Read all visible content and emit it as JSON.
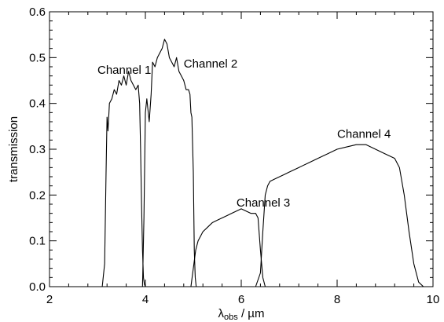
{
  "chart_data": {
    "type": "line",
    "xlabel_main": "λ",
    "xlabel_sub": "obs",
    "xlabel_unit": " / µm",
    "ylabel": "transmission",
    "xlim": [
      2,
      10
    ],
    "ylim": [
      0,
      0.6
    ],
    "x_major_ticks": [
      2,
      4,
      6,
      8,
      10
    ],
    "y_major_ticks": [
      0.0,
      0.1,
      0.2,
      0.3,
      0.4,
      0.5,
      0.6
    ],
    "x_tick_labels": [
      "2",
      "4",
      "6",
      "8",
      "10"
    ],
    "y_tick_labels": [
      "0.0",
      "0.1",
      "0.2",
      "0.3",
      "0.4",
      "0.5",
      "0.6"
    ],
    "grid": false,
    "line_color": "#000000",
    "series": [
      {
        "name": "Channel 1",
        "x": [
          3.1,
          3.15,
          3.18,
          3.2,
          3.22,
          3.25,
          3.3,
          3.35,
          3.4,
          3.45,
          3.5,
          3.55,
          3.6,
          3.65,
          3.7,
          3.75,
          3.8,
          3.85,
          3.88,
          3.9,
          3.92,
          3.94,
          3.96,
          3.98,
          4.0
        ],
        "y": [
          0.0,
          0.05,
          0.25,
          0.37,
          0.34,
          0.4,
          0.41,
          0.43,
          0.42,
          0.45,
          0.44,
          0.46,
          0.44,
          0.47,
          0.45,
          0.44,
          0.43,
          0.44,
          0.4,
          0.3,
          0.18,
          0.08,
          0.02,
          0.005,
          0.0
        ]
      },
      {
        "name": "Channel 2",
        "x": [
          3.94,
          3.97,
          4.0,
          4.03,
          4.05,
          4.08,
          4.12,
          4.15,
          4.2,
          4.25,
          4.3,
          4.35,
          4.4,
          4.45,
          4.5,
          4.55,
          4.6,
          4.65,
          4.7,
          4.75,
          4.8,
          4.85,
          4.9,
          4.93,
          4.95,
          4.97,
          5.0,
          5.02,
          5.04,
          5.06
        ],
        "y": [
          0.0,
          0.15,
          0.38,
          0.41,
          0.39,
          0.36,
          0.42,
          0.49,
          0.48,
          0.5,
          0.51,
          0.52,
          0.54,
          0.53,
          0.5,
          0.49,
          0.48,
          0.5,
          0.47,
          0.46,
          0.45,
          0.43,
          0.43,
          0.42,
          0.38,
          0.37,
          0.25,
          0.08,
          0.02,
          0.0
        ]
      },
      {
        "name": "Channel 3",
        "x": [
          4.95,
          5.0,
          5.05,
          5.1,
          5.15,
          5.2,
          5.3,
          5.4,
          5.5,
          5.6,
          5.7,
          5.8,
          5.9,
          6.0,
          6.1,
          6.2,
          6.3,
          6.35,
          6.4,
          6.45,
          6.5
        ],
        "y": [
          0.0,
          0.04,
          0.08,
          0.1,
          0.11,
          0.12,
          0.13,
          0.14,
          0.145,
          0.15,
          0.155,
          0.16,
          0.165,
          0.17,
          0.165,
          0.16,
          0.16,
          0.15,
          0.08,
          0.02,
          0.0
        ]
      },
      {
        "name": "Channel 4",
        "x": [
          6.3,
          6.4,
          6.45,
          6.5,
          6.55,
          6.6,
          6.7,
          6.8,
          6.9,
          7.0,
          7.2,
          7.4,
          7.6,
          7.8,
          8.0,
          8.2,
          8.4,
          8.6,
          8.8,
          9.0,
          9.1,
          9.2,
          9.25,
          9.3,
          9.4,
          9.5,
          9.6,
          9.7,
          9.8
        ],
        "y": [
          0.0,
          0.03,
          0.12,
          0.2,
          0.22,
          0.23,
          0.235,
          0.24,
          0.245,
          0.25,
          0.26,
          0.27,
          0.28,
          0.29,
          0.3,
          0.305,
          0.31,
          0.31,
          0.3,
          0.29,
          0.285,
          0.28,
          0.27,
          0.26,
          0.2,
          0.12,
          0.05,
          0.01,
          0.0
        ]
      }
    ],
    "annotations": [
      {
        "text": "Channel 1",
        "x": 3.0,
        "y": 0.465
      },
      {
        "text": "Channel 2",
        "x": 4.8,
        "y": 0.478
      },
      {
        "text": "Channel 3",
        "x": 5.9,
        "y": 0.175
      },
      {
        "text": "Channel 4",
        "x": 8.0,
        "y": 0.325
      }
    ]
  }
}
